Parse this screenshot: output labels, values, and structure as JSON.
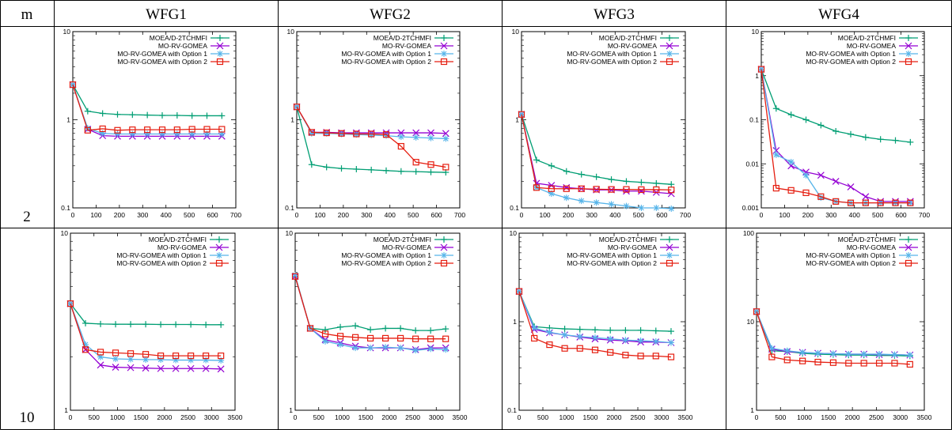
{
  "table": {
    "corner": "m",
    "columns": [
      "WFG1",
      "WFG2",
      "WFG3",
      "WFG4"
    ],
    "rows": [
      "2",
      "10"
    ]
  },
  "colors": {
    "MOEA/D-2TCHMFI": "#009e73",
    "MO-RV-GOMEA": "#9400d3",
    "MO-RV-GOMEA with Option 1": "#56b4e9",
    "MO-RV-GOMEA with Option 2": "#e51e10"
  },
  "legend": [
    "MOEA/D-2TCHMFI",
    "MO-RV-GOMEA",
    "MO-RV-GOMEA with Option 1",
    "MO-RV-GOMEA with Option 2"
  ],
  "chart_data": [
    {
      "type": "line",
      "row": "2",
      "column": "WFG1",
      "yscale": "log",
      "legend_position": "top-right",
      "xlim": [
        0,
        700
      ],
      "ylim": [
        0.1,
        10
      ],
      "x": [
        0,
        64,
        128,
        192,
        256,
        320,
        384,
        448,
        512,
        576,
        640
      ],
      "xticks": [
        "0",
        "100",
        "200",
        "300",
        "400",
        "500",
        "600",
        "700"
      ],
      "yticks": [
        "0.1",
        "1",
        "10"
      ],
      "series": [
        {
          "name": "MOEA/D-2TCHMFI",
          "values": [
            2.5,
            1.25,
            1.18,
            1.15,
            1.14,
            1.13,
            1.12,
            1.12,
            1.11,
            1.11,
            1.11
          ]
        },
        {
          "name": "MO-RV-GOMEA",
          "values": [
            2.5,
            0.78,
            0.66,
            0.65,
            0.65,
            0.65,
            0.65,
            0.65,
            0.65,
            0.65,
            0.65
          ]
        },
        {
          "name": "MO-RV-GOMEA with Option 1",
          "values": [
            2.5,
            0.8,
            0.7,
            0.69,
            0.69,
            0.69,
            0.69,
            0.69,
            0.69,
            0.69,
            0.69
          ]
        },
        {
          "name": "MO-RV-GOMEA with Option 2",
          "values": [
            2.5,
            0.76,
            0.79,
            0.76,
            0.77,
            0.77,
            0.77,
            0.77,
            0.78,
            0.78,
            0.78
          ]
        }
      ]
    },
    {
      "type": "line",
      "row": "2",
      "column": "WFG2",
      "yscale": "log",
      "legend_position": "top-right",
      "xlim": [
        0,
        700
      ],
      "ylim": [
        0.1,
        10
      ],
      "x": [
        0,
        64,
        128,
        192,
        256,
        320,
        384,
        448,
        512,
        576,
        640
      ],
      "xticks": [
        "0",
        "100",
        "200",
        "300",
        "400",
        "500",
        "600",
        "700"
      ],
      "yticks": [
        "0.1",
        "1",
        "10"
      ],
      "series": [
        {
          "name": "MOEA/D-2TCHMFI",
          "values": [
            1.4,
            0.31,
            0.29,
            0.28,
            0.275,
            0.27,
            0.265,
            0.26,
            0.258,
            0.255,
            0.253
          ]
        },
        {
          "name": "MO-RV-GOMEA",
          "values": [
            1.4,
            0.72,
            0.72,
            0.71,
            0.71,
            0.71,
            0.71,
            0.71,
            0.71,
            0.71,
            0.7
          ]
        },
        {
          "name": "MO-RV-GOMEA with Option 1",
          "values": [
            1.4,
            0.7,
            0.7,
            0.69,
            0.68,
            0.67,
            0.66,
            0.64,
            0.63,
            0.62,
            0.61
          ]
        },
        {
          "name": "MO-RV-GOMEA with Option 2",
          "values": [
            1.4,
            0.72,
            0.71,
            0.7,
            0.69,
            0.69,
            0.68,
            0.5,
            0.33,
            0.31,
            0.29
          ]
        }
      ]
    },
    {
      "type": "line",
      "row": "2",
      "column": "WFG3",
      "yscale": "log",
      "legend_position": "top-right",
      "xlim": [
        0,
        700
      ],
      "ylim": [
        0.1,
        10
      ],
      "x": [
        0,
        64,
        128,
        192,
        256,
        320,
        384,
        448,
        512,
        576,
        640
      ],
      "xticks": [
        "0",
        "100",
        "200",
        "300",
        "400",
        "500",
        "600",
        "700"
      ],
      "yticks": [
        "0.1",
        "1",
        "10"
      ],
      "series": [
        {
          "name": "MOEA/D-2TCHMFI",
          "values": [
            1.15,
            0.35,
            0.3,
            0.26,
            0.24,
            0.225,
            0.21,
            0.2,
            0.195,
            0.19,
            0.185
          ]
        },
        {
          "name": "MO-RV-GOMEA",
          "values": [
            1.15,
            0.19,
            0.18,
            0.17,
            0.165,
            0.16,
            0.16,
            0.155,
            0.155,
            0.15,
            0.145
          ]
        },
        {
          "name": "MO-RV-GOMEA with Option 1",
          "values": [
            1.15,
            0.17,
            0.145,
            0.13,
            0.12,
            0.115,
            0.11,
            0.105,
            0.1,
            0.1,
            0.098
          ]
        },
        {
          "name": "MO-RV-GOMEA with Option 2",
          "values": [
            1.15,
            0.17,
            0.165,
            0.165,
            0.165,
            0.163,
            0.162,
            0.162,
            0.161,
            0.161,
            0.16
          ]
        }
      ]
    },
    {
      "type": "line",
      "row": "2",
      "column": "WFG4",
      "yscale": "log",
      "legend_position": "top-right",
      "xlim": [
        0,
        700
      ],
      "ylim": [
        0.001,
        10
      ],
      "x": [
        0,
        64,
        128,
        192,
        256,
        320,
        384,
        448,
        512,
        576,
        640
      ],
      "xticks": [
        "0",
        "100",
        "200",
        "300",
        "400",
        "500",
        "600",
        "700"
      ],
      "yticks": [
        "0.001",
        "0.01",
        "0.1",
        "1",
        "10"
      ],
      "series": [
        {
          "name": "MOEA/D-2TCHMFI",
          "values": [
            1.4,
            0.18,
            0.13,
            0.1,
            0.075,
            0.055,
            0.047,
            0.04,
            0.036,
            0.034,
            0.031
          ]
        },
        {
          "name": "MO-RV-GOMEA",
          "values": [
            1.4,
            0.02,
            0.009,
            0.0065,
            0.0055,
            0.004,
            0.003,
            0.0018,
            0.0014,
            0.0014,
            0.0014
          ]
        },
        {
          "name": "MO-RV-GOMEA with Option 1",
          "values": [
            1.4,
            0.016,
            0.011,
            0.0055,
            0.0017,
            0.0014,
            0.0013,
            0.0013,
            0.0013,
            0.0013,
            0.0013
          ]
        },
        {
          "name": "MO-RV-GOMEA with Option 2",
          "values": [
            1.4,
            0.0028,
            0.0025,
            0.0022,
            0.0018,
            0.0014,
            0.0013,
            0.0013,
            0.0013,
            0.0013,
            0.0013
          ]
        }
      ]
    },
    {
      "type": "line",
      "row": "10",
      "column": "WFG1",
      "yscale": "log",
      "legend_position": "top-right",
      "xlim": [
        0,
        3500
      ],
      "ylim": [
        1,
        10
      ],
      "x": [
        0,
        320,
        640,
        960,
        1280,
        1600,
        1920,
        2240,
        2560,
        2880,
        3200
      ],
      "xticks": [
        "0",
        "500",
        "1000",
        "1500",
        "2000",
        "2500",
        "3000",
        "3500"
      ],
      "yticks": [
        "1",
        "10"
      ],
      "series": [
        {
          "name": "MOEA/D-2TCHMFI",
          "values": [
            4.0,
            3.1,
            3.07,
            3.06,
            3.06,
            3.06,
            3.05,
            3.05,
            3.05,
            3.04,
            3.04
          ]
        },
        {
          "name": "MO-RV-GOMEA",
          "values": [
            4.0,
            2.2,
            1.8,
            1.75,
            1.74,
            1.73,
            1.72,
            1.72,
            1.72,
            1.72,
            1.71
          ]
        },
        {
          "name": "MO-RV-GOMEA with Option 1",
          "values": [
            4.0,
            2.35,
            2.0,
            1.95,
            1.94,
            1.93,
            1.93,
            1.92,
            1.92,
            1.92,
            1.91
          ]
        },
        {
          "name": "MO-RV-GOMEA with Option 2",
          "values": [
            4.0,
            2.2,
            2.13,
            2.11,
            2.09,
            2.07,
            2.03,
            2.03,
            2.03,
            2.03,
            2.03
          ]
        }
      ]
    },
    {
      "type": "line",
      "row": "10",
      "column": "WFG2",
      "yscale": "log",
      "legend_position": "top-right",
      "xlim": [
        0,
        3500
      ],
      "ylim": [
        1,
        10
      ],
      "x": [
        0,
        320,
        640,
        960,
        1280,
        1600,
        1920,
        2240,
        2560,
        2880,
        3200
      ],
      "xticks": [
        "0",
        "500",
        "1000",
        "1500",
        "2000",
        "2500",
        "3000",
        "3500"
      ],
      "yticks": [
        "1",
        "10"
      ],
      "series": [
        {
          "name": "MOEA/D-2TCHMFI",
          "values": [
            5.7,
            2.9,
            2.85,
            2.95,
            3.0,
            2.85,
            2.9,
            2.9,
            2.82,
            2.82,
            2.88
          ]
        },
        {
          "name": "MO-RV-GOMEA",
          "values": [
            5.7,
            2.9,
            2.5,
            2.4,
            2.3,
            2.25,
            2.25,
            2.25,
            2.2,
            2.25,
            2.25
          ]
        },
        {
          "name": "MO-RV-GOMEA with Option 1",
          "values": [
            5.8,
            2.9,
            2.45,
            2.35,
            2.25,
            2.25,
            2.27,
            2.25,
            2.18,
            2.22,
            2.2
          ]
        },
        {
          "name": "MO-RV-GOMEA with Option 2",
          "values": [
            5.7,
            2.9,
            2.7,
            2.62,
            2.58,
            2.55,
            2.55,
            2.55,
            2.53,
            2.53,
            2.53
          ]
        }
      ]
    },
    {
      "type": "line",
      "row": "10",
      "column": "WFG3",
      "yscale": "log",
      "legend_position": "top-right",
      "xlim": [
        0,
        3500
      ],
      "ylim": [
        0.1,
        10
      ],
      "x": [
        0,
        320,
        640,
        960,
        1280,
        1600,
        1920,
        2240,
        2560,
        2880,
        3200
      ],
      "xticks": [
        "0",
        "500",
        "1000",
        "1500",
        "2000",
        "2500",
        "3000",
        "3500"
      ],
      "yticks": [
        "0.1",
        "1",
        "10"
      ],
      "series": [
        {
          "name": "MOEA/D-2TCHMFI",
          "values": [
            2.2,
            0.88,
            0.85,
            0.83,
            0.82,
            0.81,
            0.8,
            0.8,
            0.8,
            0.79,
            0.78
          ]
        },
        {
          "name": "MO-RV-GOMEA",
          "values": [
            2.2,
            0.82,
            0.75,
            0.71,
            0.67,
            0.64,
            0.62,
            0.61,
            0.59,
            0.59,
            0.58
          ]
        },
        {
          "name": "MO-RV-GOMEA with Option 1",
          "values": [
            2.2,
            0.85,
            0.76,
            0.71,
            0.68,
            0.66,
            0.64,
            0.62,
            0.61,
            0.6,
            0.58
          ]
        },
        {
          "name": "MO-RV-GOMEA with Option 2",
          "values": [
            2.2,
            0.65,
            0.55,
            0.5,
            0.5,
            0.48,
            0.45,
            0.42,
            0.41,
            0.41,
            0.4
          ]
        }
      ]
    },
    {
      "type": "line",
      "row": "10",
      "column": "WFG4",
      "yscale": "log",
      "legend_position": "top-right",
      "xlim": [
        0,
        3500
      ],
      "ylim": [
        1,
        100
      ],
      "x": [
        0,
        320,
        640,
        960,
        1280,
        1600,
        1920,
        2240,
        2560,
        2880,
        3200
      ],
      "xticks": [
        "0",
        "500",
        "1000",
        "1500",
        "2000",
        "2500",
        "3000",
        "3500"
      ],
      "yticks": [
        "1",
        "10",
        "100"
      ],
      "series": [
        {
          "name": "MOEA/D-2TCHMFI",
          "values": [
            13,
            4.7,
            4.6,
            4.4,
            4.3,
            4.25,
            4.2,
            4.2,
            4.15,
            4.15,
            4.1
          ]
        },
        {
          "name": "MO-RV-GOMEA",
          "values": [
            13,
            4.9,
            4.6,
            4.5,
            4.4,
            4.35,
            4.3,
            4.3,
            4.25,
            4.25,
            4.2
          ]
        },
        {
          "name": "MO-RV-GOMEA with Option 1",
          "values": [
            13,
            5.0,
            4.7,
            4.5,
            4.4,
            4.35,
            4.3,
            4.3,
            4.3,
            4.25,
            4.2
          ]
        },
        {
          "name": "MO-RV-GOMEA with Option 2",
          "values": [
            13,
            4.0,
            3.7,
            3.6,
            3.5,
            3.45,
            3.4,
            3.4,
            3.4,
            3.4,
            3.3
          ]
        }
      ]
    }
  ]
}
